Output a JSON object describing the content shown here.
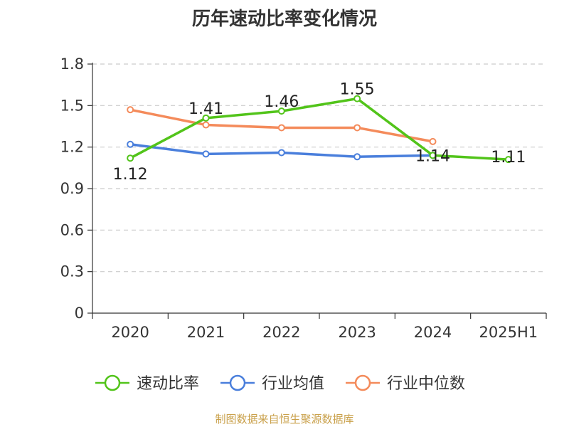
{
  "chart_data": {
    "type": "line",
    "title": "历年速动比率变化情况",
    "categories": [
      "2020",
      "2021",
      "2022",
      "2023",
      "2024",
      "2025H1"
    ],
    "y_ticks": [
      "0",
      "0.3",
      "0.6",
      "0.9",
      "1.2",
      "1.5",
      "1.8"
    ],
    "ylim": [
      0,
      1.8
    ],
    "grid": true,
    "legend_position": "bottom",
    "series": [
      {
        "name": "速动比率",
        "color": "#52c41a",
        "values": [
          1.12,
          1.41,
          1.46,
          1.55,
          1.14,
          1.11
        ],
        "labels": [
          "1.12",
          "1.41",
          "1.46",
          "1.55",
          "1.14",
          "1.11"
        ]
      },
      {
        "name": "行业均值",
        "color": "#4a7fdc",
        "values": [
          1.22,
          1.15,
          1.16,
          1.13,
          1.14,
          null
        ]
      },
      {
        "name": "行业中位数",
        "color": "#f48b5b",
        "values": [
          1.47,
          1.36,
          1.34,
          1.34,
          1.24,
          null
        ]
      }
    ]
  },
  "source_text": "制图数据来自恒生聚源数据库"
}
